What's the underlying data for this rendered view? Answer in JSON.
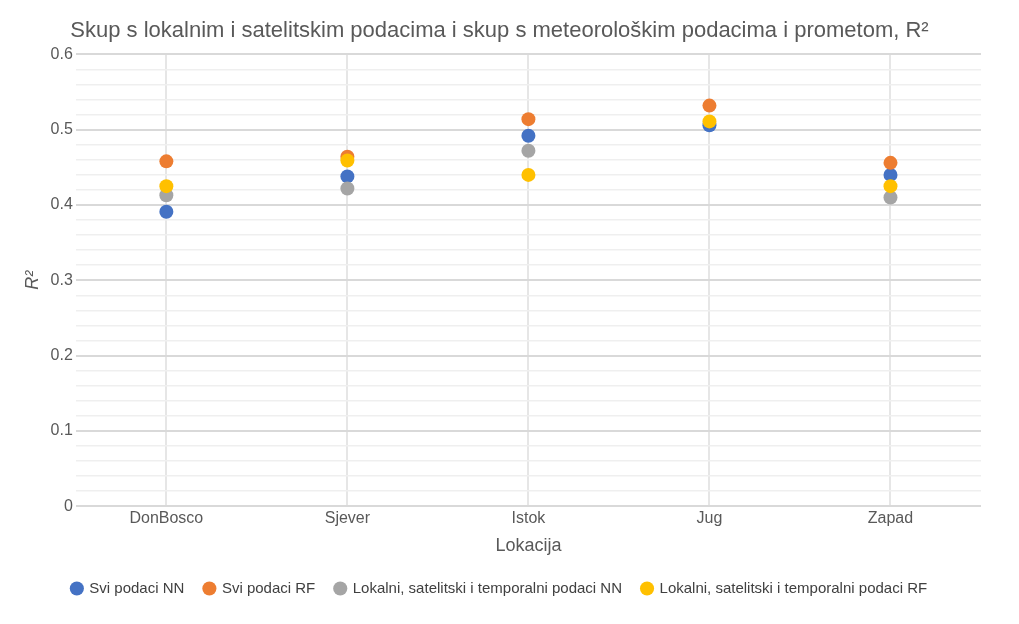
{
  "chart_data": {
    "type": "scatter",
    "title": "Skup s lokalnim i satelitskim podacima i skup s meteorološkim podacima i prometom, R²",
    "xlabel": "Lokacija",
    "ylabel": "R²",
    "categories": [
      "DonBosco",
      "Sjever",
      "Istok",
      "Jug",
      "Zapad"
    ],
    "series": [
      {
        "name": "Svi podaci NN",
        "color": "#4472c4",
        "values": [
          0.391,
          0.438,
          0.492,
          0.506,
          0.44
        ]
      },
      {
        "name": "Svi podaci RF",
        "color": "#ed7d31",
        "values": [
          0.458,
          0.464,
          0.514,
          0.532,
          0.456
        ]
      },
      {
        "name": "Lokalni, satelitski i temporalni podaci NN",
        "color": "#a5a5a5",
        "values": [
          0.413,
          0.422,
          0.472,
          null,
          0.41
        ]
      },
      {
        "name": "Lokalni, satelitski i temporalni podaci RF",
        "color": "#ffc000",
        "values": [
          0.425,
          0.459,
          0.44,
          0.511,
          0.425
        ]
      }
    ],
    "ylim": [
      0,
      0.6
    ],
    "yticks": [
      0,
      {
        "value": 0.02,
        "label": null
      },
      {
        "value": 0.04,
        "label": null
      },
      {
        "value": 0.06,
        "label": null
      },
      {
        "value": 0.08,
        "label": null
      },
      0.1,
      {
        "value": 0.12,
        "label": null
      },
      {
        "value": 0.14,
        "label": null
      },
      {
        "value": 0.16,
        "label": null
      },
      {
        "value": 0.18,
        "label": null
      },
      0.2,
      {
        "value": 0.22,
        "label": null
      },
      {
        "value": 0.24,
        "label": null
      },
      {
        "value": 0.26,
        "label": null
      },
      {
        "value": 0.28,
        "label": null
      },
      0.3,
      {
        "value": 0.32,
        "label": null
      },
      {
        "value": 0.34,
        "label": null
      },
      {
        "value": 0.36,
        "label": null
      },
      {
        "value": 0.38,
        "label": null
      },
      0.4,
      {
        "value": 0.42,
        "label": null
      },
      {
        "value": 0.44,
        "label": null
      },
      {
        "value": 0.46,
        "label": null
      },
      {
        "value": 0.48,
        "label": null
      },
      0.5,
      {
        "value": 0.52,
        "label": null
      },
      {
        "value": 0.54,
        "label": null
      },
      {
        "value": 0.56,
        "label": null
      },
      {
        "value": 0.58,
        "label": null
      },
      0.6
    ],
    "grid": true,
    "legend": "bottom",
    "marker": "circle"
  }
}
